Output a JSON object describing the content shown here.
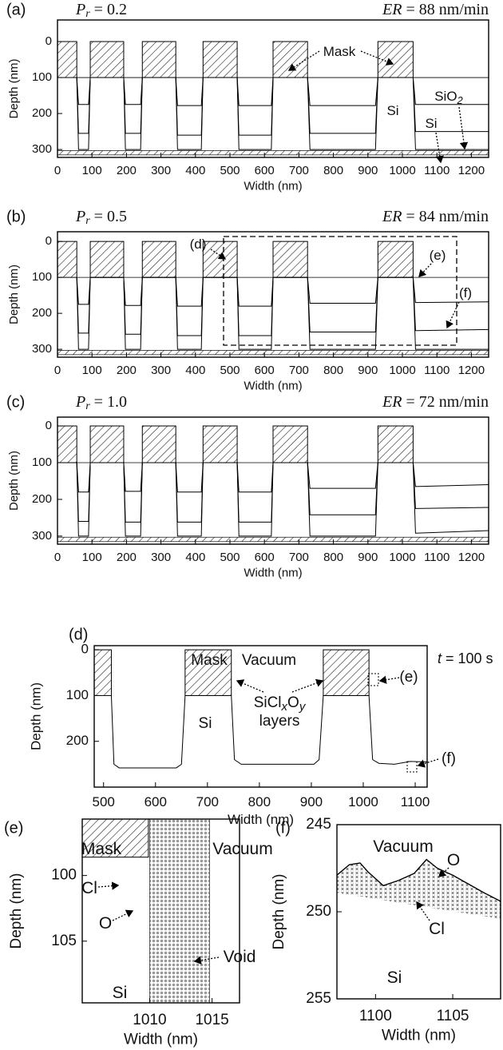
{
  "chart_data": [
    {
      "type": "profile",
      "panel": "(a)",
      "pr_symbol": "P",
      "pr_sub": "r",
      "pr_value": "= 0.2",
      "er_symbol": "ER",
      "er_value": "= 88 nm/min",
      "xlabel": "Width (nm)",
      "ylabel": "Depth (nm)",
      "xlim": [
        0,
        1250
      ],
      "ylim": [
        -60,
        322
      ],
      "xticks": [
        0,
        100,
        200,
        300,
        400,
        500,
        600,
        700,
        800,
        900,
        1000,
        1100,
        1200
      ],
      "yticks": [
        0,
        100,
        200,
        300
      ],
      "masks": [
        [
          0,
          56
        ],
        [
          95,
          192
        ],
        [
          246,
          343
        ],
        [
          422,
          521
        ],
        [
          625,
          725
        ],
        [
          929,
          1031
        ]
      ],
      "mask_depth": [
        0,
        100
      ],
      "surface": 100,
      "oxide": [
        303,
        315
      ],
      "x": [
        56,
        61,
        90,
        95,
        192,
        197,
        241,
        246,
        343,
        348,
        417,
        422,
        521,
        526,
        620,
        625,
        725,
        732,
        922,
        929,
        1031,
        1038,
        1250
      ],
      "series": [
        {
          "color": "#000000",
          "values": [
            100,
            175,
            175,
            100,
            100,
            175,
            175,
            100,
            100,
            178,
            178,
            100,
            100,
            178,
            178,
            100,
            100,
            178,
            178,
            100,
            100,
            175,
            175
          ]
        },
        {
          "color": "#000000",
          "values": [
            100,
            255,
            255,
            100,
            100,
            255,
            255,
            100,
            100,
            260,
            260,
            100,
            100,
            260,
            260,
            100,
            100,
            255,
            255,
            100,
            100,
            250,
            250
          ]
        },
        {
          "color": "#000000",
          "values": [
            100,
            300,
            300,
            100,
            100,
            300,
            300,
            100,
            100,
            300,
            300,
            100,
            100,
            300,
            300,
            100,
            100,
            300,
            300,
            100,
            100,
            300,
            300
          ]
        }
      ],
      "annotations": [
        [
          "Mask"
        ],
        [
          "Si"
        ],
        [
          "SiO",
          "2"
        ],
        [
          "Si"
        ]
      ]
    },
    {
      "type": "profile",
      "panel": "(b)",
      "pr_symbol": "P",
      "pr_sub": "r",
      "pr_value": "= 0.5",
      "er_symbol": "ER",
      "er_value": "= 84 nm/min",
      "xlabel": "Width (nm)",
      "ylabel": "Depth (nm)",
      "xlim": [
        0,
        1250
      ],
      "ylim": [
        -27,
        322
      ],
      "xticks": [
        0,
        100,
        200,
        300,
        400,
        500,
        600,
        700,
        800,
        900,
        1000,
        1100,
        1200
      ],
      "yticks": [
        0,
        100,
        200,
        300
      ],
      "masks": [
        [
          0,
          56
        ],
        [
          95,
          192
        ],
        [
          246,
          343
        ],
        [
          422,
          521
        ],
        [
          625,
          725
        ],
        [
          929,
          1031
        ]
      ],
      "mask_depth": [
        0,
        100
      ],
      "surface": 100,
      "oxide": [
        303,
        315
      ],
      "x": [
        56,
        61,
        90,
        95,
        192,
        197,
        241,
        246,
        343,
        348,
        417,
        422,
        521,
        526,
        620,
        625,
        725,
        732,
        922,
        929,
        1031,
        1038,
        1250
      ],
      "series": [
        {
          "color": "#000000",
          "values": [
            100,
            175,
            175,
            100,
            100,
            178,
            178,
            100,
            100,
            180,
            180,
            100,
            100,
            180,
            180,
            100,
            100,
            172,
            172,
            100,
            100,
            170,
            168
          ]
        },
        {
          "color": "#000000",
          "values": [
            100,
            255,
            255,
            100,
            100,
            258,
            258,
            100,
            100,
            262,
            262,
            100,
            100,
            262,
            262,
            100,
            100,
            252,
            252,
            100,
            100,
            248,
            245
          ]
        },
        {
          "color": "#000000",
          "values": [
            100,
            300,
            300,
            100,
            100,
            300,
            300,
            100,
            100,
            300,
            300,
            100,
            100,
            300,
            300,
            100,
            100,
            300,
            300,
            100,
            100,
            300,
            300
          ]
        }
      ],
      "annotations": [
        [
          "(d)"
        ],
        [
          "(e)"
        ],
        [
          "(f)"
        ]
      ]
    },
    {
      "type": "profile",
      "panel": "(c)",
      "pr_symbol": "P",
      "pr_sub": "r",
      "pr_value": "= 1.0",
      "er_symbol": "ER",
      "er_value": "= 72 nm/min",
      "xlabel": "Width (nm)",
      "ylabel": "Depth (nm)",
      "xlim": [
        0,
        1250
      ],
      "ylim": [
        -24,
        322
      ],
      "xticks": [
        0,
        100,
        200,
        300,
        400,
        500,
        600,
        700,
        800,
        900,
        1000,
        1100,
        1200
      ],
      "yticks": [
        0,
        100,
        200,
        300
      ],
      "masks": [
        [
          0,
          56
        ],
        [
          95,
          192
        ],
        [
          246,
          343
        ],
        [
          422,
          521
        ],
        [
          625,
          725
        ],
        [
          929,
          1031
        ]
      ],
      "mask_depth": [
        0,
        100
      ],
      "surface": 100,
      "oxide": [
        303,
        315
      ],
      "x": [
        56,
        61,
        90,
        95,
        192,
        197,
        241,
        246,
        343,
        348,
        417,
        422,
        521,
        526,
        620,
        625,
        725,
        732,
        922,
        929,
        1031,
        1038,
        1250
      ],
      "series": [
        {
          "color": "#000000",
          "values": [
            100,
            180,
            180,
            100,
            100,
            178,
            178,
            100,
            100,
            180,
            180,
            100,
            100,
            180,
            180,
            100,
            100,
            170,
            170,
            100,
            100,
            165,
            160
          ]
        },
        {
          "color": "#000000",
          "values": [
            100,
            260,
            260,
            100,
            100,
            262,
            262,
            100,
            100,
            262,
            262,
            100,
            100,
            262,
            262,
            100,
            100,
            242,
            242,
            100,
            100,
            225,
            222
          ]
        },
        {
          "color": "#000000",
          "values": [
            100,
            300,
            300,
            100,
            100,
            300,
            300,
            100,
            100,
            300,
            300,
            100,
            100,
            300,
            300,
            100,
            100,
            300,
            300,
            100,
            100,
            292,
            285
          ]
        }
      ]
    },
    {
      "type": "profile",
      "panel": "(d)",
      "time_symbol": "t",
      "time_value": "= 100 s",
      "xlabel": "Width (nm)",
      "ylabel": "Depth (nm)",
      "xlim": [
        482,
        1123
      ],
      "ylim": [
        -9,
        300
      ],
      "xticks": [
        500,
        600,
        700,
        800,
        900,
        1000,
        1100
      ],
      "yticks": [
        0,
        100,
        200
      ],
      "masks": [
        [
          482,
          515
        ],
        [
          657,
          746
        ],
        [
          923,
          1011
        ]
      ],
      "mask_depth": [
        0,
        100
      ],
      "x": [
        515,
        520,
        530,
        640,
        650,
        657,
        746,
        752,
        765,
        905,
        915,
        923,
        1011,
        1018,
        1030,
        1060,
        1090,
        1123
      ],
      "series": [
        {
          "color": "#000000",
          "values": [
            100,
            250,
            258,
            258,
            250,
            100,
            100,
            240,
            250,
            250,
            240,
            100,
            100,
            240,
            248,
            250,
            244,
            245
          ]
        }
      ],
      "annotations": [
        [
          "Mask"
        ],
        [
          "Vacuum"
        ],
        [
          "Si"
        ],
        [
          "SiCl",
          "x",
          "O",
          "y"
        ],
        [
          "layers"
        ],
        [
          "(e)"
        ],
        [
          "(f)"
        ]
      ]
    },
    {
      "type": "atoms",
      "panel": "(e)",
      "xlabel": "Width (nm)",
      "ylabel": "Depth (nm)",
      "xlim": [
        1004.6,
        1017.2
      ],
      "ylim": [
        95.7,
        109.7
      ],
      "xticks": [
        1010,
        1015
      ],
      "yticks": [
        100,
        105
      ],
      "masks": [
        [
          1004.6,
          1009.9
        ]
      ],
      "mask_depth": [
        95.7,
        98.6
      ],
      "layer_x": [
        1010,
        1014.8
      ],
      "annotations": [
        [
          "Mask"
        ],
        [
          "Vacuum"
        ],
        [
          "Cl"
        ],
        [
          "O"
        ],
        [
          "Void"
        ],
        [
          "Si"
        ]
      ]
    },
    {
      "type": "atoms",
      "panel": "(f)",
      "xlabel": "Width (nm)",
      "ylabel": "Depth (nm)",
      "xlim": [
        1097.5,
        1108.1
      ],
      "ylim": [
        245,
        255
      ],
      "xticks": [
        1100,
        1105
      ],
      "yticks": [
        245,
        250,
        255
      ],
      "x": [
        1097.5,
        1098.3,
        1099,
        1099.5,
        1100.5,
        1101.5,
        1102.5,
        1103.3,
        1104,
        1105,
        1106,
        1107,
        1108.1
      ],
      "series": [
        {
          "color": "#000000",
          "values": [
            247.9,
            247.3,
            247.2,
            247.7,
            248.5,
            248.2,
            247.8,
            247.0,
            247.5,
            247.9,
            248.4,
            248.9,
            249.4
          ]
        }
      ],
      "annotations": [
        [
          "Vacuum"
        ],
        [
          "O"
        ],
        [
          "Cl"
        ],
        [
          "Si"
        ]
      ]
    }
  ]
}
